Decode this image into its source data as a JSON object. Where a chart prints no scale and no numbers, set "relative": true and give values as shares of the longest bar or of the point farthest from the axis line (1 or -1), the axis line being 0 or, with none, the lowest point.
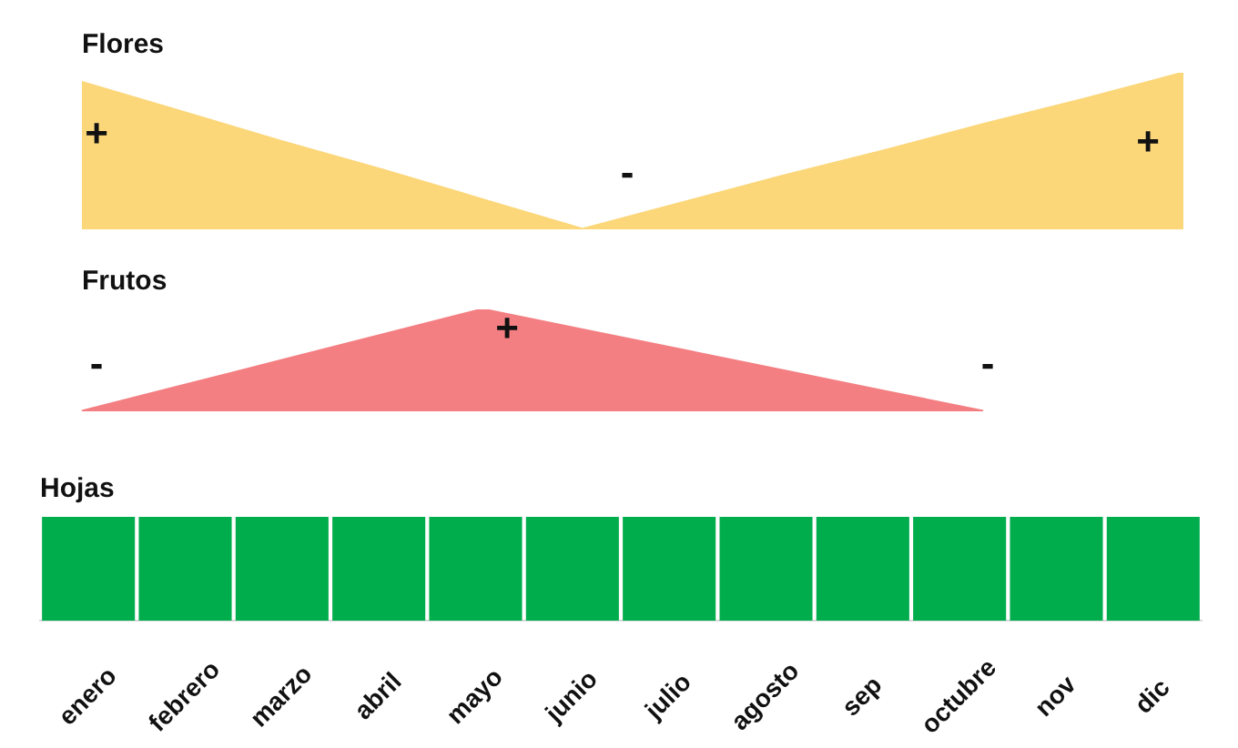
{
  "chart_data": [
    {
      "type": "area",
      "title": "Flores",
      "relative": true,
      "tick_labels": false,
      "marker": "none",
      "categories": [
        null,
        null,
        null,
        null,
        null,
        null,
        null,
        null,
        null,
        null,
        null,
        null
      ],
      "series": [
        {
          "color": "#fbd77a",
          "values": [
            0.94,
            0.75,
            0.56,
            0.38,
            0.19,
            0,
            0.17,
            0.34,
            0.5,
            0.67,
            0.83,
            1
          ]
        }
      ],
      "annotations": [
        "+",
        "-",
        "+"
      ]
    },
    {
      "type": "area",
      "title": "Frutos",
      "relative": true,
      "tick_labels": false,
      "marker": "none",
      "categories": [
        null,
        null,
        null,
        null,
        null,
        null,
        null,
        null,
        null,
        null,
        null,
        null
      ],
      "series": [
        {
          "color": "#f47f82",
          "values": [
            0,
            0.25,
            0.5,
            0.75,
            1,
            0.8,
            0.6,
            0.4,
            0.2,
            0,
            null,
            null
          ]
        }
      ],
      "annotations": [
        "-",
        "+",
        "-"
      ]
    },
    {
      "type": "bar",
      "title": "Hojas",
      "relative": true,
      "tick_labels": "x",
      "marker": "none",
      "categories": [
        "enero",
        "febrero",
        "marzo",
        "abril",
        "mayo",
        "junio",
        "julio",
        "agosto",
        "sep",
        "octubre",
        "nov",
        "dic"
      ],
      "series": [
        {
          "color": "#00ad4d",
          "values": [
            1,
            1,
            1,
            1,
            1,
            1,
            1,
            1,
            1,
            1,
            1,
            1
          ]
        }
      ]
    }
  ]
}
